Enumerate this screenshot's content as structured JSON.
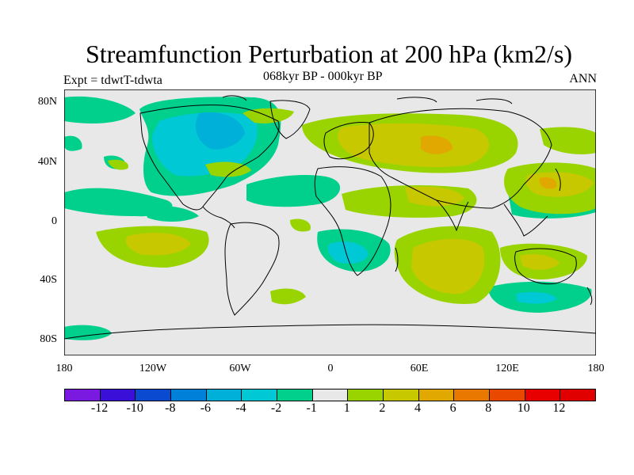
{
  "title": "Streamfunction Perturbation at 200 hPa (km2/s)",
  "left_label": "Expt = tdwtT-tdwta",
  "center_label": "068kyr BP - 000kyr BP",
  "right_label": "ANN",
  "colors": {
    "background": "#e8e8e8",
    "neg_1": "#00d08c",
    "neg_2": "#00c8d4",
    "neg_3": "#00b0d8",
    "pos_1": "#99d400",
    "pos_2": "#c8c800",
    "pos_3": "#e0a800",
    "pos_4": "#e87800"
  },
  "chart_data": {
    "type": "contour-map",
    "title": "Streamfunction Perturbation at 200 hPa (km2/s)",
    "subtitle": "068kyr BP - 000kyr BP",
    "left_label": "Expt = tdwtT-tdwta",
    "right_label": "ANN",
    "xlim": [
      -180,
      180
    ],
    "ylim": [
      -90,
      90
    ],
    "x_ticks": [
      {
        "value": -180,
        "label": "180"
      },
      {
        "value": -120,
        "label": "120W"
      },
      {
        "value": -60,
        "label": "60W"
      },
      {
        "value": 0,
        "label": "0"
      },
      {
        "value": 60,
        "label": "60E"
      },
      {
        "value": 120,
        "label": "120E"
      },
      {
        "value": 180,
        "label": "180"
      }
    ],
    "y_ticks": [
      {
        "value": 80,
        "label": "80N"
      },
      {
        "value": 40,
        "label": "40N"
      },
      {
        "value": 0,
        "label": "0"
      },
      {
        "value": -40,
        "label": "40S"
      },
      {
        "value": -80,
        "label": "80S"
      }
    ],
    "colorbar": {
      "labels": [
        "-12",
        "-10",
        "-8",
        "-6",
        "-4",
        "-2",
        "-1",
        "1",
        "2",
        "4",
        "6",
        "8",
        "10",
        "12"
      ],
      "colors": [
        "#7a1ae0",
        "#3a10d8",
        "#0a4ad0",
        "#0080d8",
        "#00b0d8",
        "#00c8d4",
        "#00d08c",
        "#e8e8e8",
        "#99d400",
        "#c8c800",
        "#e0a800",
        "#e87800",
        "#e84800",
        "#e80000",
        "#e00000"
      ]
    }
  }
}
